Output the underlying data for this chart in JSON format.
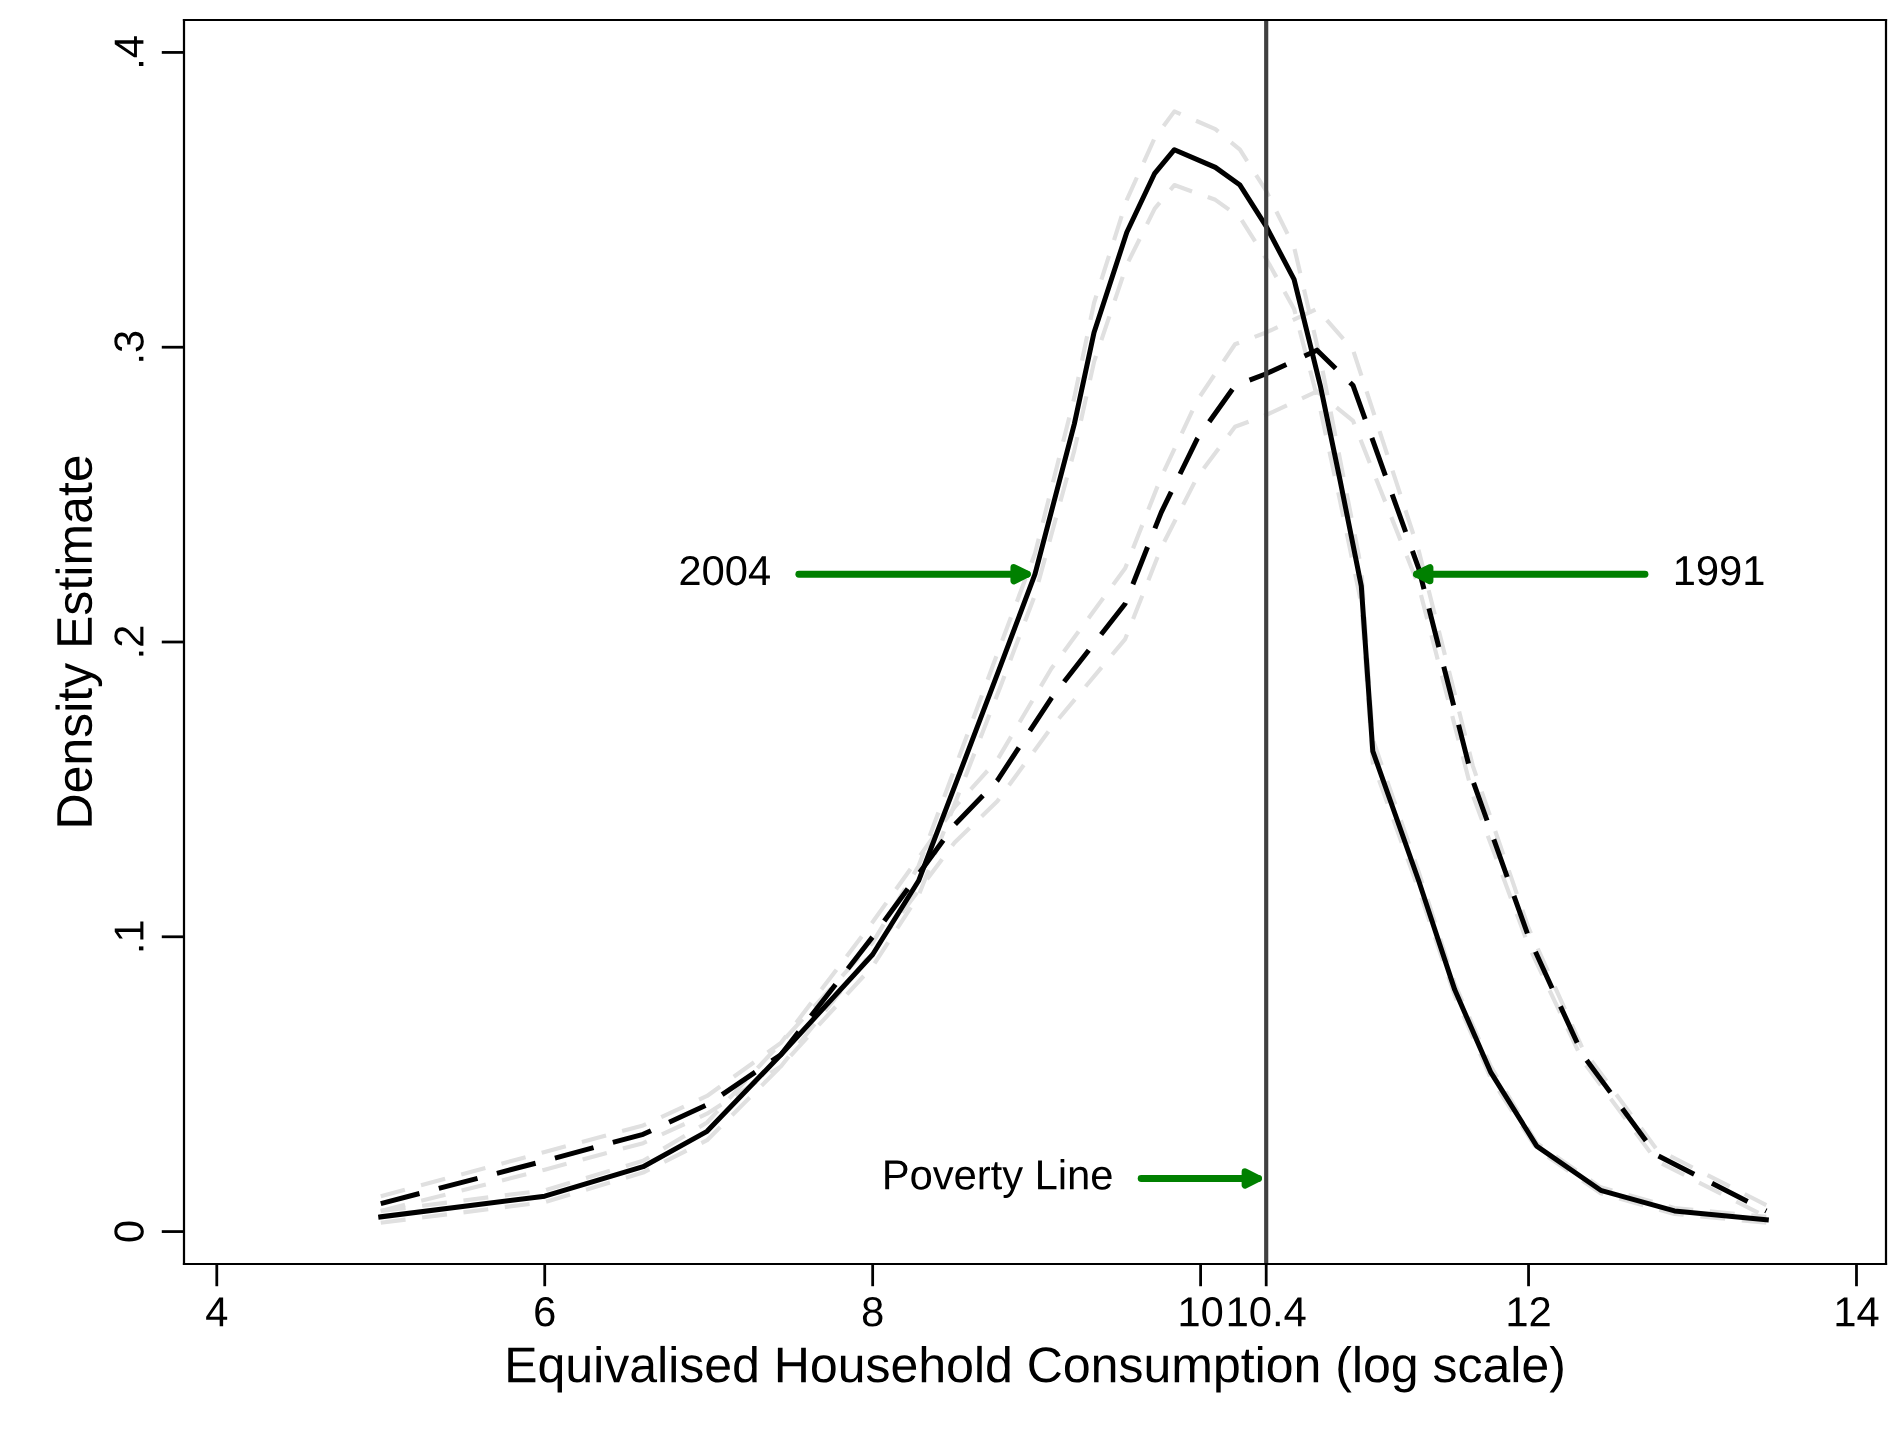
{
  "chart_data": {
    "type": "line",
    "xlabel": "Equivalised Household Consumption (log scale)",
    "ylabel": "Density Estimate",
    "xlim": [
      3.8,
      14.18
    ],
    "ylim": [
      -0.011,
      0.411
    ],
    "xticks": [
      4,
      6,
      8,
      10,
      10.4,
      12,
      14
    ],
    "yticks": [
      0,
      {
        "value": 0.1,
        "label": ".1"
      },
      {
        "value": 0.2,
        "label": ".2"
      },
      {
        "value": 0.3,
        "label": ".3"
      },
      {
        "value": 0.4,
        "label": ".4"
      }
    ],
    "grid": false,
    "legend": false,
    "series": [
      {
        "color": "#e0e0e0",
        "line_style": "dashed",
        "x": [
          5.0,
          6.0,
          6.6,
          6.99,
          7.44,
          8.0,
          8.28,
          8.5,
          8.78,
          8.99,
          9.23,
          9.35,
          9.55,
          9.72,
          9.84,
          10.09,
          10.24,
          10.4,
          10.57,
          10.73,
          10.85,
          10.98,
          11.05,
          11.33,
          11.55,
          11.77,
          12.05,
          12.44,
          12.89,
          13.45
        ],
        "values": [
          0.003,
          0.01,
          0.02,
          0.031,
          0.056,
          0.09,
          0.114,
          0.145,
          0.185,
          0.216,
          0.265,
          0.295,
          0.328,
          0.347,
          0.355,
          0.35,
          0.344,
          0.33,
          0.313,
          0.279,
          0.248,
          0.213,
          0.159,
          0.116,
          0.08,
          0.052,
          0.028,
          0.013,
          0.006,
          0.003
        ]
      },
      {
        "color": "#e0e0e0",
        "line_style": "dashed",
        "x": [
          5.0,
          6.0,
          6.6,
          6.99,
          7.44,
          8.0,
          8.28,
          8.5,
          8.78,
          8.99,
          9.23,
          9.35,
          9.55,
          9.72,
          9.84,
          10.09,
          10.24,
          10.4,
          10.57,
          10.73,
          10.85,
          10.98,
          11.05,
          11.33,
          11.55,
          11.77,
          12.05,
          12.44,
          12.89,
          13.45
        ],
        "values": [
          0.007,
          0.014,
          0.024,
          0.037,
          0.064,
          0.098,
          0.124,
          0.157,
          0.199,
          0.23,
          0.283,
          0.315,
          0.35,
          0.371,
          0.38,
          0.374,
          0.367,
          0.353,
          0.334,
          0.296,
          0.262,
          0.225,
          0.167,
          0.122,
          0.084,
          0.056,
          0.03,
          0.015,
          0.008,
          0.005
        ]
      },
      {
        "color": "#e0e0e0",
        "line_style": "dashed",
        "x": [
          5.0,
          6.0,
          6.6,
          6.99,
          7.44,
          8.0,
          8.5,
          8.76,
          9.09,
          9.54,
          9.76,
          9.98,
          10.21,
          10.4,
          10.71,
          10.93,
          11.33,
          11.66,
          12.0,
          12.33,
          12.78,
          13.45
        ],
        "values": [
          0.007,
          0.021,
          0.03,
          0.04,
          0.056,
          0.095,
          0.132,
          0.146,
          0.171,
          0.201,
          0.232,
          0.256,
          0.273,
          0.277,
          0.285,
          0.275,
          0.219,
          0.148,
          0.097,
          0.058,
          0.024,
          0.005
        ]
      },
      {
        "color": "#e0e0e0",
        "line_style": "dashed",
        "x": [
          5.0,
          6.0,
          6.6,
          6.99,
          7.44,
          8.0,
          8.5,
          8.76,
          9.09,
          9.54,
          9.76,
          9.98,
          10.21,
          10.4,
          10.71,
          10.93,
          11.33,
          11.66,
          12.0,
          12.33,
          12.78,
          13.45
        ],
        "values": [
          0.012,
          0.027,
          0.036,
          0.046,
          0.064,
          0.105,
          0.144,
          0.16,
          0.191,
          0.225,
          0.256,
          0.282,
          0.301,
          0.305,
          0.313,
          0.299,
          0.231,
          0.158,
          0.103,
          0.062,
          0.028,
          0.009
        ]
      },
      {
        "color": "#000000",
        "line_style": "solid",
        "x": [
          5.0,
          6.0,
          6.6,
          6.99,
          7.44,
          8.0,
          8.28,
          8.5,
          8.78,
          8.99,
          9.23,
          9.35,
          9.55,
          9.72,
          9.84,
          10.09,
          10.24,
          10.4,
          10.57,
          10.73,
          10.85,
          10.98,
          11.05,
          11.33,
          11.55,
          11.77,
          12.05,
          12.44,
          12.89,
          13.45
        ],
        "values": [
          0.005,
          0.012,
          0.022,
          0.034,
          0.06,
          0.094,
          0.119,
          0.151,
          0.192,
          0.223,
          0.274,
          0.305,
          0.339,
          0.359,
          0.367,
          0.361,
          0.355,
          0.341,
          0.323,
          0.287,
          0.255,
          0.219,
          0.163,
          0.119,
          0.082,
          0.054,
          0.029,
          0.014,
          0.007,
          0.004
        ]
      },
      {
        "color": "#000000",
        "line_style": "dashed",
        "x": [
          5.0,
          6.0,
          6.6,
          6.99,
          7.44,
          8.0,
          8.5,
          8.76,
          9.09,
          9.54,
          9.76,
          9.98,
          10.21,
          10.4,
          10.71,
          10.93,
          11.33,
          11.66,
          12.0,
          12.33,
          12.78,
          13.45
        ],
        "values": [
          0.0095,
          0.024,
          0.033,
          0.043,
          0.06,
          0.1,
          0.138,
          0.153,
          0.181,
          0.213,
          0.244,
          0.269,
          0.287,
          0.291,
          0.299,
          0.287,
          0.225,
          0.153,
          0.1,
          0.06,
          0.026,
          0.007
        ]
      }
    ],
    "ref_lines": [
      {
        "axis": "x",
        "value": 10.4,
        "color": "#404040",
        "line_style": "solid"
      }
    ],
    "annotations": [
      {
        "text": "2004",
        "x": 8.99,
        "y": 0.223
      },
      {
        "text": "1991",
        "x": 11.27,
        "y": 0.223
      },
      {
        "text": "Poverty Line",
        "x": 10.4,
        "y": 0.018
      }
    ]
  }
}
